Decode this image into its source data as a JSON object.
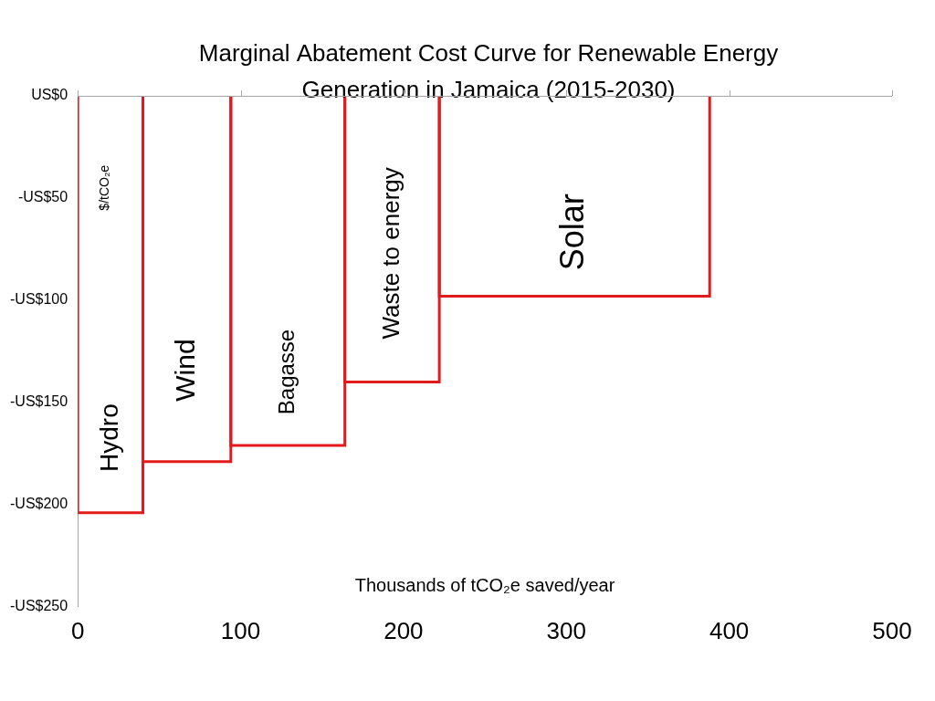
{
  "chart_data": {
    "type": "bar",
    "title": "Marginal Abatement Cost Curve for Renewable Energy Generation in Jamaica (2015-2030)",
    "xlabel": "Thousands of tCO₂e saved/year",
    "ylabel": "$/tCO₂e",
    "categories": [
      "Hydro",
      "Wind",
      "Bagasse",
      "Waste to energy",
      "Solar"
    ],
    "values": [
      -204,
      -179,
      -171,
      -140,
      -98
    ],
    "widths": [
      40,
      54,
      70,
      58,
      166
    ],
    "color": "#e31a1c",
    "xlim": [
      0,
      500
    ],
    "xticks": [
      0,
      100,
      200,
      300,
      400,
      500
    ],
    "ylim": [
      -250,
      0
    ],
    "yticks": [
      {
        "value": -250,
        "label": "-US$250"
      },
      {
        "value": -200,
        "label": "-US$200"
      },
      {
        "value": -150,
        "label": "-US$150"
      },
      {
        "value": -100,
        "label": "-US$100"
      },
      {
        "value": -50,
        "label": "-US$50"
      },
      {
        "value": 0,
        "label": "US$0"
      }
    ],
    "grid": false
  }
}
